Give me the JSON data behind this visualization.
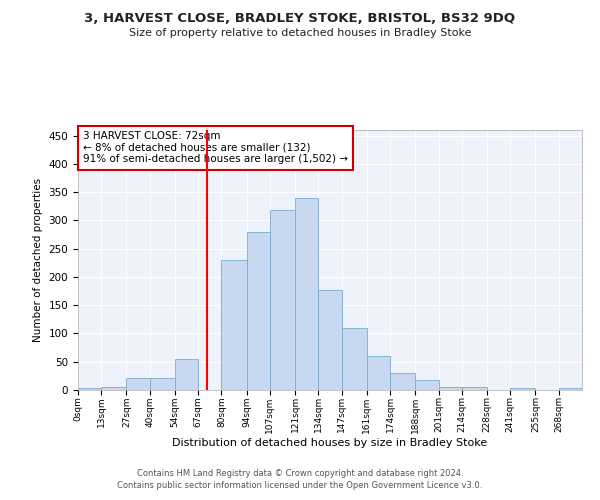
{
  "title": "3, HARVEST CLOSE, BRADLEY STOKE, BRISTOL, BS32 9DQ",
  "subtitle": "Size of property relative to detached houses in Bradley Stoke",
  "xlabel": "Distribution of detached houses by size in Bradley Stoke",
  "ylabel": "Number of detached properties",
  "bar_color": "#c8d8f0",
  "bar_edge_color": "#7aabcc",
  "background_color": "#edf2fb",
  "grid_color": "#ffffff",
  "red_line_x": 72,
  "annotation_text": "3 HARVEST CLOSE: 72sqm\n← 8% of detached houses are smaller (132)\n91% of semi-detached houses are larger (1,502) →",
  "annotation_box_color": "#ffffff",
  "annotation_box_edge": "#cc0000",
  "bin_edges": [
    0,
    13,
    27,
    40,
    54,
    67,
    80,
    94,
    107,
    121,
    134,
    147,
    161,
    174,
    188,
    201,
    214,
    228,
    241,
    255,
    268,
    281
  ],
  "bin_labels": [
    "0sqm",
    "13sqm",
    "27sqm",
    "40sqm",
    "54sqm",
    "67sqm",
    "80sqm",
    "94sqm",
    "107sqm",
    "121sqm",
    "134sqm",
    "147sqm",
    "161sqm",
    "174sqm",
    "188sqm",
    "201sqm",
    "214sqm",
    "228sqm",
    "241sqm",
    "255sqm",
    "268sqm"
  ],
  "bar_heights": [
    3,
    5,
    22,
    22,
    54,
    0,
    230,
    280,
    318,
    340,
    177,
    109,
    61,
    30,
    17,
    6,
    5,
    0,
    4,
    0,
    3
  ],
  "ylim": [
    0,
    460
  ],
  "yticks": [
    0,
    50,
    100,
    150,
    200,
    250,
    300,
    350,
    400,
    450
  ],
  "footer_line1": "Contains HM Land Registry data © Crown copyright and database right 2024.",
  "footer_line2": "Contains public sector information licensed under the Open Government Licence v3.0."
}
